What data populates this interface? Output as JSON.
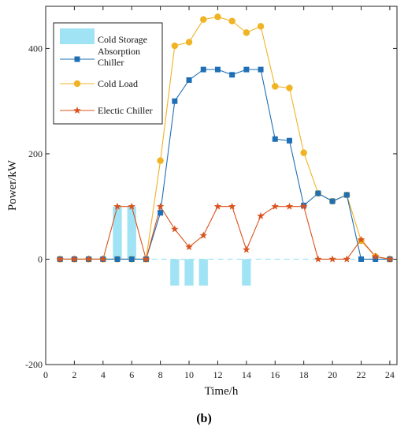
{
  "caption": "(b)",
  "colors": {
    "cold_storage": "#9fe3f5",
    "absorption_chiller": "#1f6fb5",
    "cold_load": "#f0b323",
    "electric_chiller": "#d9531e",
    "zero_dash": "#9fe3f5"
  },
  "chart_data": {
    "type": "bar+line",
    "xlabel": "Time/h",
    "ylabel": "Power/kW",
    "xlim": [
      0,
      24.5
    ],
    "ylim": [
      -200,
      480
    ],
    "xticks": [
      0,
      2,
      4,
      6,
      8,
      10,
      12,
      14,
      16,
      18,
      20,
      22,
      24
    ],
    "yticks": [
      -200,
      0,
      200,
      400
    ],
    "grid": false,
    "legend_position": "top-left",
    "bars": {
      "name": "Cold Storage",
      "x": [
        5,
        6,
        9,
        10,
        11,
        14
      ],
      "values": [
        100,
        100,
        -50,
        -50,
        -50,
        -50
      ]
    },
    "series": [
      {
        "name": "Absorption Chiller",
        "marker": "square",
        "x": [
          1,
          2,
          3,
          4,
          5,
          6,
          7,
          8,
          9,
          10,
          11,
          12,
          13,
          14,
          15,
          16,
          17,
          18,
          19,
          20,
          21,
          22,
          23,
          24
        ],
        "values": [
          0,
          0,
          0,
          0,
          0,
          0,
          0,
          88,
          300,
          340,
          360,
          360,
          350,
          360,
          360,
          228,
          225,
          102,
          125,
          110,
          122,
          0,
          0,
          0
        ]
      },
      {
        "name": "Cold Load",
        "marker": "circle",
        "x": [
          1,
          2,
          3,
          4,
          5,
          6,
          7,
          8,
          9,
          10,
          11,
          12,
          13,
          14,
          15,
          16,
          17,
          18,
          19,
          20,
          21,
          22,
          23,
          24
        ],
        "values": [
          0,
          0,
          0,
          0,
          0,
          0,
          0,
          187,
          405,
          412,
          455,
          460,
          452,
          430,
          442,
          328,
          325,
          202,
          125,
          110,
          122,
          35,
          5,
          0
        ]
      },
      {
        "name": "Electic Chiller",
        "marker": "star",
        "x": [
          1,
          2,
          3,
          4,
          5,
          6,
          7,
          8,
          9,
          10,
          11,
          12,
          13,
          14,
          15,
          16,
          17,
          18,
          19,
          20,
          21,
          22,
          23,
          24
        ],
        "values": [
          0,
          0,
          0,
          0,
          100,
          100,
          0,
          100,
          57,
          23,
          45,
          100,
          100,
          18,
          82,
          100,
          100,
          100,
          0,
          0,
          0,
          37,
          5,
          0
        ]
      }
    ],
    "legend_label_lines": [
      [
        "Cold Storage"
      ],
      [
        "Absorption",
        "Chiller"
      ],
      [
        "Cold Load"
      ],
      [
        "Electic Chiller"
      ]
    ]
  }
}
